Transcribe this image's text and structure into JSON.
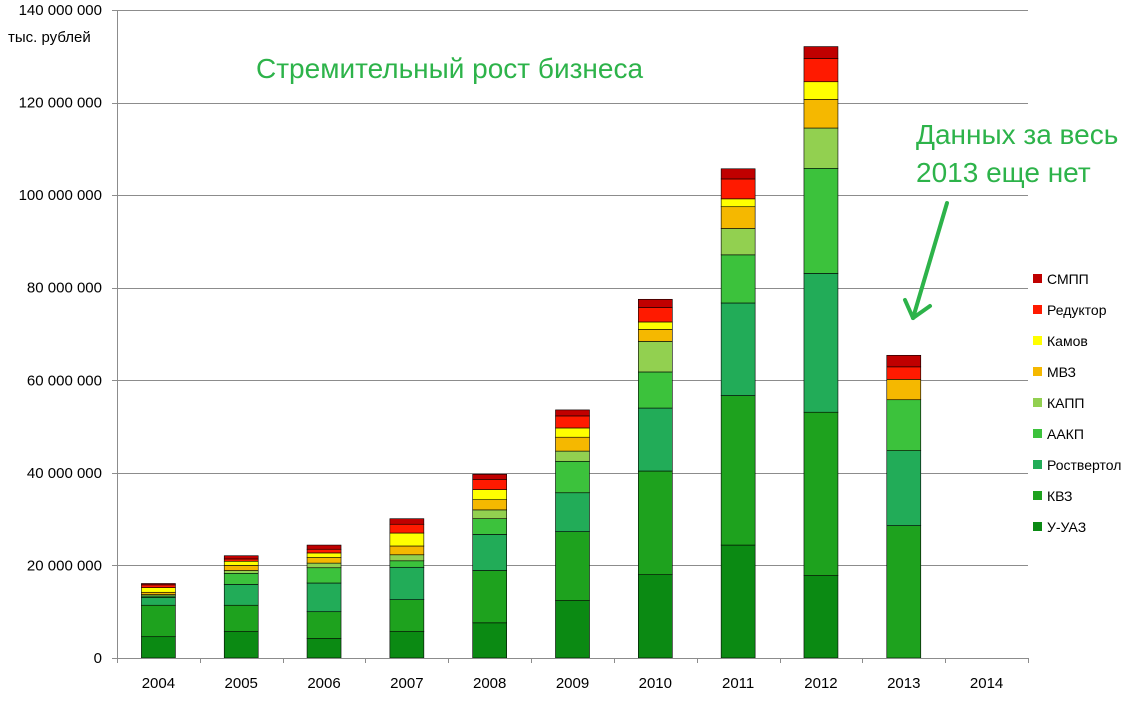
{
  "chart_data": {
    "type": "bar",
    "stacked": true,
    "title": "Стремительный рост бизнеса",
    "ylabel": "тыс. рублей",
    "annotation_line1": "Данных за весь",
    "annotation_line2": "2013 еще нет",
    "ylim": [
      0,
      140000000
    ],
    "yticks": [
      0,
      20000000,
      40000000,
      60000000,
      80000000,
      100000000,
      120000000,
      140000000
    ],
    "ytick_labels": [
      "0",
      "20 000 000",
      "40 000 000",
      "60 000 000",
      "80 000 000",
      "100 000 000",
      "120 000 000",
      "140 000 000"
    ],
    "categories": [
      "2004",
      "2005",
      "2006",
      "2007",
      "2008",
      "2009",
      "2010",
      "2011",
      "2012",
      "2013",
      "2014"
    ],
    "grid": true,
    "legend_position": "right",
    "series": [
      {
        "name": "У-УАЗ",
        "color": "#0b8a13",
        "values": [
          4600000,
          5700000,
          4200000,
          5700000,
          7600000,
          12400000,
          18000000,
          24400000,
          17800000,
          0,
          0
        ]
      },
      {
        "name": "КВЗ",
        "color": "#1ea21e",
        "values": [
          6800000,
          5700000,
          5800000,
          6900000,
          11300000,
          14900000,
          22400000,
          32300000,
          35300000,
          28600000,
          0
        ]
      },
      {
        "name": "Роствертол",
        "color": "#22ac58",
        "values": [
          1700000,
          4500000,
          6200000,
          7000000,
          7800000,
          8400000,
          13600000,
          20000000,
          30000000,
          16200000,
          0
        ]
      },
      {
        "name": "ААКП",
        "color": "#3cc23c",
        "values": [
          300000,
          2400000,
          3300000,
          1400000,
          3400000,
          6800000,
          7800000,
          10400000,
          22700000,
          11000000,
          0
        ]
      },
      {
        "name": "КАПП",
        "color": "#92d050",
        "values": [
          300000,
          600000,
          1000000,
          1300000,
          1900000,
          2200000,
          6600000,
          5700000,
          8700000,
          0,
          0
        ]
      },
      {
        "name": "МВЗ",
        "color": "#f5b800",
        "values": [
          500000,
          1100000,
          1200000,
          1900000,
          2200000,
          3000000,
          2600000,
          4700000,
          6200000,
          4400000,
          0
        ]
      },
      {
        "name": "Камов",
        "color": "#ffff00",
        "values": [
          1000000,
          900000,
          1000000,
          2800000,
          2200000,
          2000000,
          1600000,
          1700000,
          3800000,
          0,
          0
        ]
      },
      {
        "name": "Редуктор",
        "color": "#ff1a00",
        "values": [
          600000,
          500000,
          800000,
          1900000,
          2200000,
          2600000,
          3100000,
          4300000,
          5000000,
          2700000,
          0
        ]
      },
      {
        "name": "СМПП",
        "color": "#c00000",
        "values": [
          300000,
          700000,
          900000,
          1200000,
          1100000,
          1300000,
          1800000,
          2200000,
          2600000,
          2500000,
          0
        ]
      }
    ]
  }
}
